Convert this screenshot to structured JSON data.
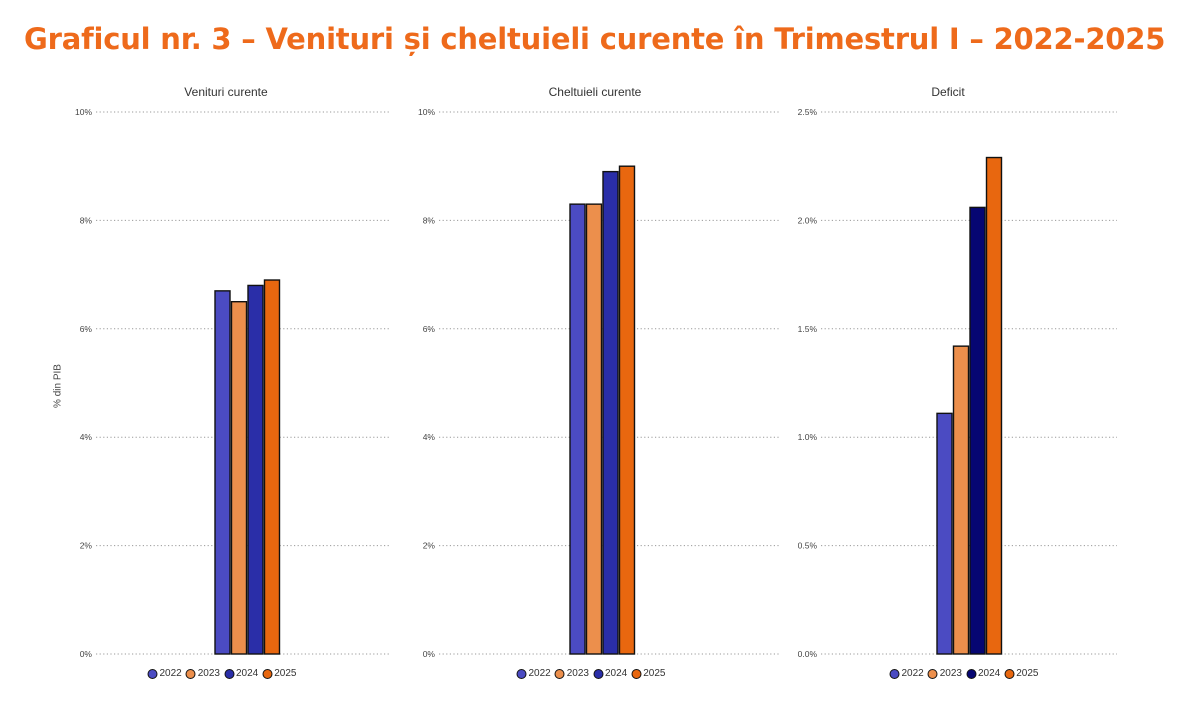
{
  "title": "Graficul nr. 3 – Venituri și cheltuieli curente în Trimestrul I – 2022-2025",
  "chart_data": [
    {
      "type": "bar",
      "title": "Venituri curente",
      "ylabel": "% din PIB",
      "ylim": [
        0,
        10
      ],
      "ytick_labels": [
        "0%",
        "2%",
        "4%",
        "6%",
        "8%",
        "10%"
      ],
      "ytick_values": [
        0,
        2,
        4,
        6,
        8,
        10
      ],
      "series": [
        {
          "name": "2022",
          "values": [
            6.7
          ],
          "color": "#4b4bc2"
        },
        {
          "name": "2023",
          "values": [
            6.5
          ],
          "color": "#ec8f4c"
        },
        {
          "name": "2024",
          "values": [
            6.8
          ],
          "color": "#2a2ea8"
        },
        {
          "name": "2025",
          "values": [
            6.9
          ],
          "color": "#e8670f"
        }
      ],
      "grid": true,
      "legend": "bottom"
    },
    {
      "type": "bar",
      "title": "Cheltuieli curente",
      "ylabel": "",
      "ylim": [
        0,
        10
      ],
      "ytick_labels": [
        "0%",
        "2%",
        "4%",
        "6%",
        "8%",
        "10%"
      ],
      "ytick_values": [
        0,
        2,
        4,
        6,
        8,
        10
      ],
      "series": [
        {
          "name": "2022",
          "values": [
            8.3
          ],
          "color": "#4b4bc2"
        },
        {
          "name": "2023",
          "values": [
            8.3
          ],
          "color": "#ec8f4c"
        },
        {
          "name": "2024",
          "values": [
            8.9
          ],
          "color": "#2a2ea8"
        },
        {
          "name": "2025",
          "values": [
            9.0
          ],
          "color": "#e8670f"
        }
      ],
      "grid": true,
      "legend": "bottom"
    },
    {
      "type": "bar",
      "title": "Deficit",
      "ylabel": "",
      "ylim": [
        0,
        2.5
      ],
      "ytick_labels": [
        "0.0%",
        "0.5%",
        "1.0%",
        "1.5%",
        "2.0%",
        "2.5%"
      ],
      "ytick_values": [
        0,
        0.5,
        1.0,
        1.5,
        2.0,
        2.5
      ],
      "series": [
        {
          "name": "2022",
          "values": [
            1.11
          ],
          "color": "#4b4bc2"
        },
        {
          "name": "2023",
          "values": [
            1.42
          ],
          "color": "#ec8f4c"
        },
        {
          "name": "2024",
          "values": [
            2.06
          ],
          "color": "#060672"
        },
        {
          "name": "2025",
          "values": [
            2.29
          ],
          "color": "#e8670f"
        }
      ],
      "grid": true,
      "legend": "bottom"
    }
  ]
}
